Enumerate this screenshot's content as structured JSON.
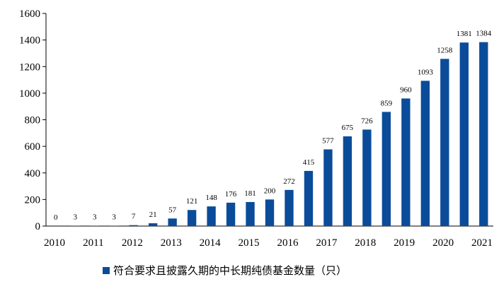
{
  "chart_data": {
    "type": "bar",
    "x_tick_labels": [
      "2010",
      "2011",
      "2012",
      "2013",
      "2014",
      "2015",
      "2016",
      "2017",
      "2018",
      "2019",
      "2020",
      "2021"
    ],
    "values": [
      0,
      3,
      3,
      3,
      7,
      21,
      57,
      121,
      148,
      176,
      181,
      200,
      272,
      415,
      577,
      675,
      726,
      859,
      960,
      1093,
      1258,
      1381,
      1384
    ],
    "ylim": [
      0,
      1600
    ],
    "y_ticks": [
      0,
      200,
      400,
      600,
      800,
      1000,
      1200,
      1400,
      1600
    ],
    "legend": {
      "label": "符合要求且披露久期的中长期纯债基金数量（只）",
      "position": "bottom"
    },
    "grid": false,
    "bar_color": "#0B4C9A",
    "data_labels": true
  }
}
